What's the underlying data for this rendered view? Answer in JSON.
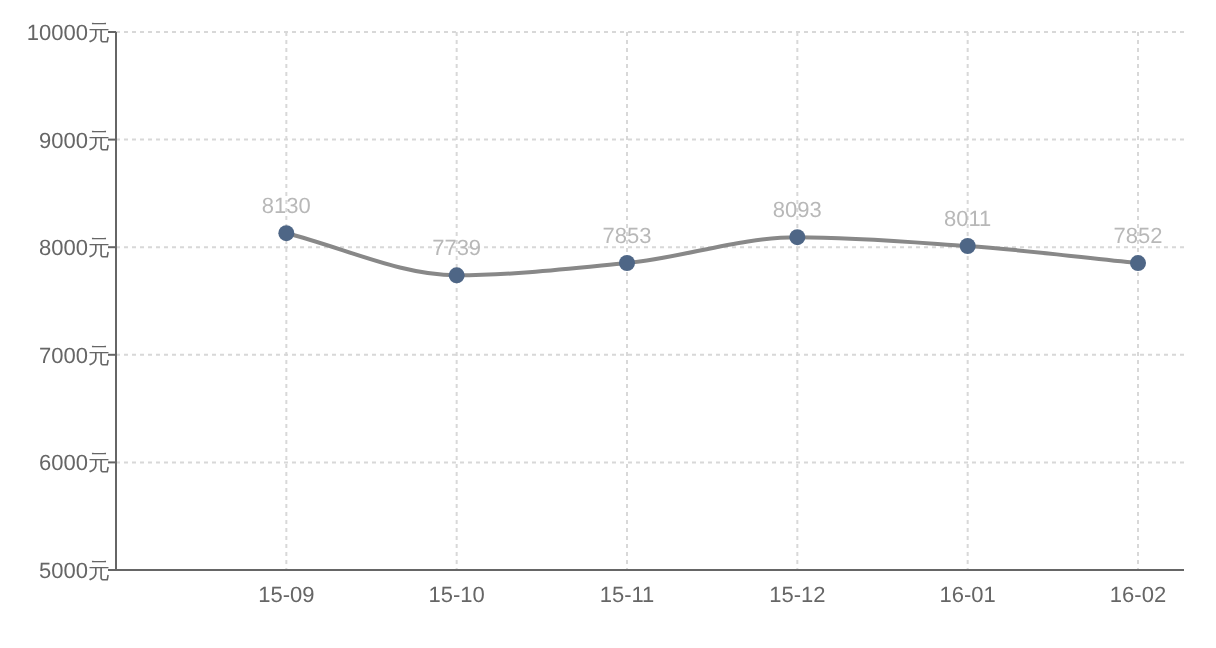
{
  "chart_data": {
    "type": "line",
    "categories": [
      "15-09",
      "15-10",
      "15-11",
      "15-12",
      "16-01",
      "16-02"
    ],
    "values": [
      8130,
      7739,
      7853,
      8093,
      8011,
      7852
    ],
    "color": "#4e6686",
    "marker": "circle",
    "data_labels": true,
    "grid": true,
    "ylim": [
      5000,
      10000
    ],
    "yticks": [
      {
        "value": 5000,
        "label": "5000元"
      },
      {
        "value": 6000,
        "label": "6000元"
      },
      {
        "value": 7000,
        "label": "7000元"
      },
      {
        "value": 8000,
        "label": "8000元"
      },
      {
        "value": 9000,
        "label": "9000元"
      },
      {
        "value": 10000,
        "label": "10000元"
      }
    ]
  }
}
